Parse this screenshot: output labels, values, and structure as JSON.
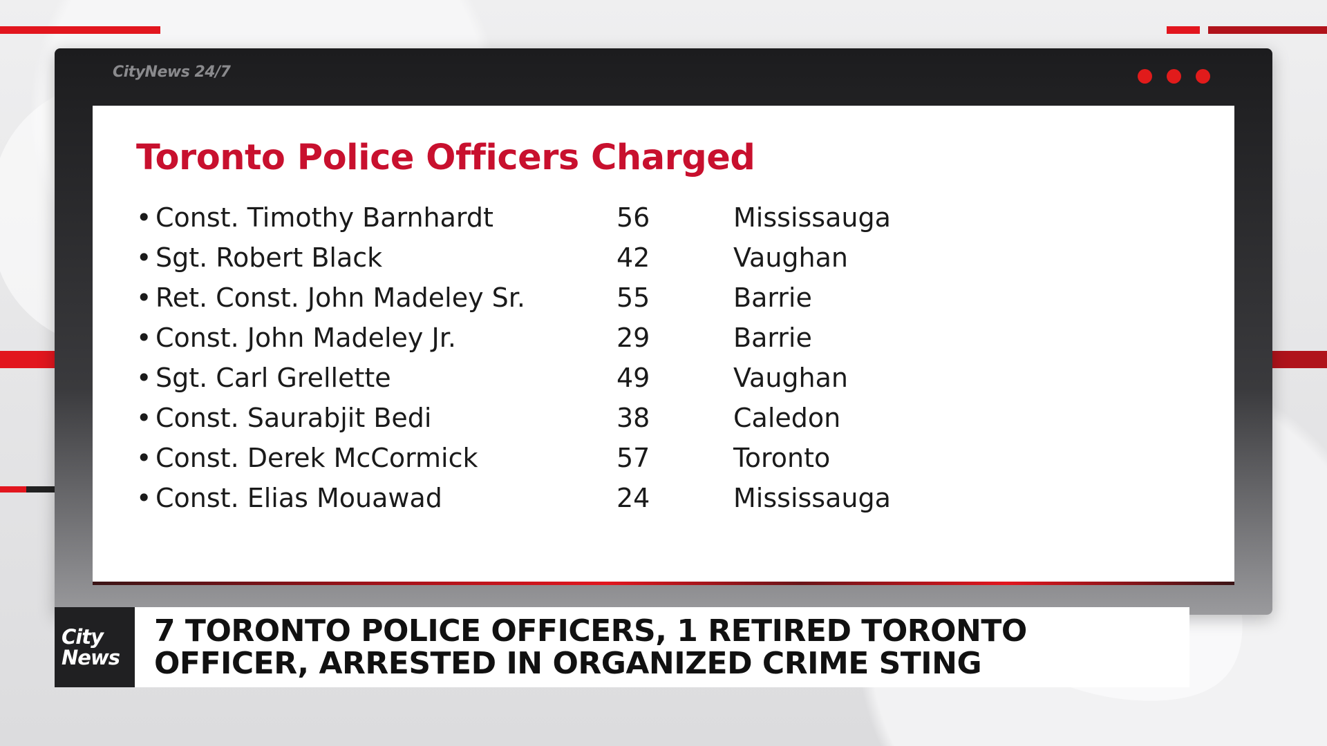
{
  "frame": {
    "logo_text": "CityNews 24/7",
    "dot_color": "#e11b1b"
  },
  "slide": {
    "title": "Toronto Police Officers Charged",
    "title_color": "#c8102e",
    "bullet": "•",
    "officers": [
      {
        "name": "Const. Timothy Barnhardt",
        "age": "56",
        "city": "Mississauga"
      },
      {
        "name": "Sgt. Robert Black",
        "age": "42",
        "city": "Vaughan"
      },
      {
        "name": "Ret. Const. John Madeley Sr.",
        "age": "55",
        "city": "Barrie"
      },
      {
        "name": "Const. John Madeley Jr.",
        "age": "29",
        "city": "Barrie"
      },
      {
        "name": "Sgt. Carl Grellette",
        "age": "49",
        "city": "Vaughan"
      },
      {
        "name": "Const. Saurabjit Bedi",
        "age": "38",
        "city": "Caledon"
      },
      {
        "name": "Const. Derek McCormick",
        "age": "57",
        "city": "Toronto"
      },
      {
        "name": "Const. Elias Mouawad",
        "age": "24",
        "city": "Mississauga"
      }
    ]
  },
  "lower_third": {
    "logo_line1": "City",
    "logo_line2": "News",
    "headline_line1": "7 TORONTO POLICE OFFICERS, 1 RETIRED TORONTO",
    "headline_line2": "OFFICER, ARRESTED IN ORGANIZED CRIME STING"
  },
  "accent_color": "#e2161e"
}
